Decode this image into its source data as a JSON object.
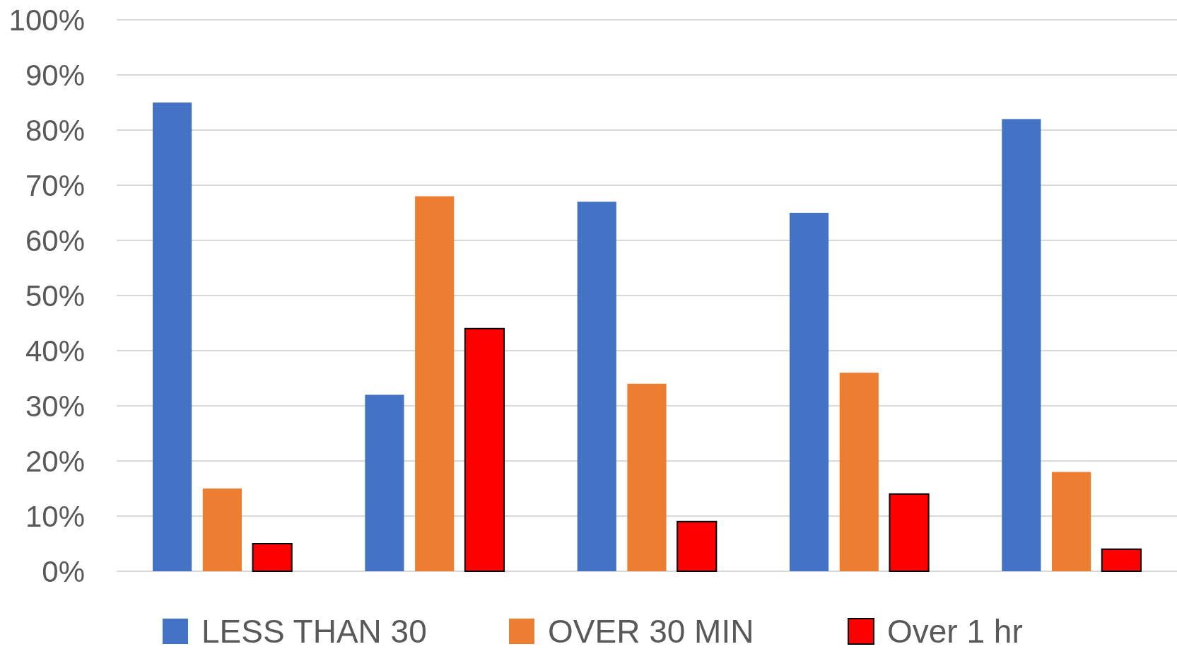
{
  "chart_data": {
    "type": "bar",
    "categories": [
      null,
      null,
      null,
      null,
      null
    ],
    "series": [
      {
        "name": "LESS THAN 30",
        "color": "#4472c4",
        "values": [
          85,
          32,
          67,
          65,
          82
        ]
      },
      {
        "name": "OVER 30 MIN",
        "color": "#ed7d31",
        "values": [
          15,
          68,
          34,
          36,
          18
        ]
      },
      {
        "name": "Over 1 hr",
        "color": "#ff0000",
        "values": [
          5,
          44,
          9,
          14,
          4
        ]
      }
    ],
    "ylim": [
      0,
      100
    ],
    "yticks": [
      {
        "value": 0,
        "label": "0%"
      },
      {
        "value": 10,
        "label": "10%"
      },
      {
        "value": 20,
        "label": "20%"
      },
      {
        "value": 30,
        "label": "30%"
      },
      {
        "value": 40,
        "label": "40%"
      },
      {
        "value": 50,
        "label": "50%"
      },
      {
        "value": 60,
        "label": "60%"
      },
      {
        "value": 70,
        "label": "70%"
      },
      {
        "value": 80,
        "label": "80%"
      },
      {
        "value": 90,
        "label": "90%"
      },
      {
        "value": 100,
        "label": "100%"
      }
    ],
    "grid": "y",
    "legend": "bottom",
    "tick_labels": "y"
  }
}
